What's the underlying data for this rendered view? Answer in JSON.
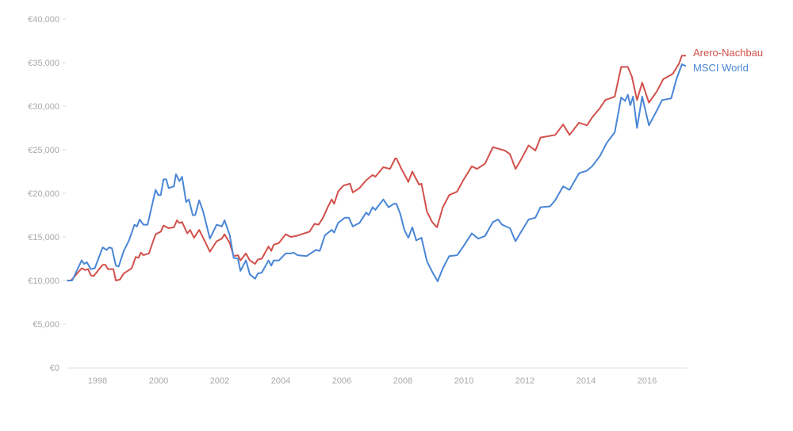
{
  "chart_data": {
    "type": "line",
    "title": "",
    "xlabel": "",
    "ylabel": "",
    "xlim": [
      1997,
      2017.3
    ],
    "ylim": [
      0,
      40000
    ],
    "grid": false,
    "legend_placement": "right-end-of-lines",
    "x_ticks": [
      1998,
      2000,
      2002,
      2004,
      2006,
      2008,
      2010,
      2012,
      2014,
      2016
    ],
    "x_tick_labels": [
      "1998",
      "2000",
      "2002",
      "2004",
      "2006",
      "2008",
      "2010",
      "2012",
      "2014",
      "2016"
    ],
    "y_ticks": [
      0,
      5000,
      10000,
      15000,
      20000,
      25000,
      30000,
      35000,
      40000
    ],
    "y_tick_labels": [
      "€0",
      "€5,000",
      "€10,000",
      "€15,000",
      "€20,000",
      "€25,000",
      "€30,000",
      "€35,000",
      "€40,000"
    ],
    "series": [
      {
        "name": "Arero-Nachbau",
        "color": "#d2504b",
        "x": [
          1997.0,
          1997.13,
          1997.48,
          1997.6,
          1997.69,
          1997.78,
          1997.87,
          1998.17,
          1998.26,
          1998.34,
          1998.52,
          1998.6,
          1998.73,
          1998.86,
          1999.03,
          1999.12,
          1999.25,
          1999.34,
          1999.42,
          1999.5,
          1999.68,
          1999.9,
          2000.07,
          2000.16,
          2000.33,
          2000.5,
          2000.6,
          2000.68,
          2000.77,
          2000.94,
          2001.03,
          2001.16,
          2001.33,
          2001.5,
          2001.68,
          2001.9,
          2002.07,
          2002.16,
          2002.33,
          2002.46,
          2002.6,
          2002.68,
          2002.86,
          2002.99,
          2003.16,
          2003.25,
          2003.38,
          2003.6,
          2003.69,
          2003.77,
          2003.94,
          2004.16,
          2004.33,
          2004.5,
          2004.94,
          2005.11,
          2005.24,
          2005.37,
          2005.54,
          2005.67,
          2005.75,
          2005.88,
          2006.06,
          2006.27,
          2006.36,
          2006.58,
          2006.8,
          2007.01,
          2007.1,
          2007.36,
          2007.58,
          2007.75,
          2007.79,
          2007.97,
          2008.14,
          2008.18,
          2008.31,
          2008.53,
          2008.61,
          2008.79,
          2008.96,
          2009.12,
          2009.31,
          2009.52,
          2009.78,
          2009.96,
          2010.26,
          2010.43,
          2010.69,
          2010.95,
          2011.34,
          2011.51,
          2011.69,
          2011.86,
          2012.12,
          2012.34,
          2012.51,
          2012.99,
          2013.25,
          2013.46,
          2013.77,
          2014.03,
          2014.2,
          2014.46,
          2014.63,
          2014.94,
          2015.15,
          2015.37,
          2015.5,
          2015.67,
          2015.84,
          2016.06,
          2016.32,
          2016.53,
          2016.84,
          2017.05,
          2017.14,
          2017.27
        ],
        "values": [
          10000,
          10000,
          11400,
          11200,
          11300,
          10600,
          10500,
          11800,
          11800,
          11300,
          11300,
          10000,
          10100,
          10800,
          11200,
          11400,
          12700,
          12600,
          13200,
          12900,
          13100,
          15300,
          15600,
          16300,
          16000,
          16100,
          16900,
          16600,
          16700,
          15400,
          15800,
          14900,
          15800,
          14600,
          13300,
          14500,
          14800,
          15300,
          14300,
          12800,
          12900,
          12300,
          13100,
          12300,
          11900,
          12400,
          12500,
          13900,
          13400,
          14100,
          14300,
          15300,
          15000,
          15100,
          15600,
          16500,
          16400,
          17100,
          18400,
          19300,
          18800,
          20200,
          20900,
          21100,
          20100,
          20600,
          21500,
          22100,
          21900,
          23000,
          22800,
          24000,
          24000,
          22700,
          21600,
          21300,
          22500,
          21000,
          21100,
          17900,
          16700,
          16100,
          18400,
          19800,
          20200,
          21400,
          23100,
          22800,
          23400,
          25300,
          24900,
          24500,
          22800,
          23800,
          25500,
          24900,
          26400,
          26700,
          27900,
          26700,
          28100,
          27800,
          28700,
          29800,
          30700,
          31100,
          34500,
          34500,
          33400,
          30700,
          32700,
          30400,
          31700,
          33100,
          33700,
          34900,
          35800,
          35800
        ]
      },
      {
        "name": "MSCI World",
        "color": "#4a86d6",
        "x": [
          1997.0,
          1997.17,
          1997.48,
          1997.56,
          1997.65,
          1997.78,
          1997.91,
          1998.17,
          1998.3,
          1998.38,
          1998.47,
          1998.6,
          1998.69,
          1998.86,
          1999.03,
          1999.21,
          1999.29,
          1999.38,
          1999.5,
          1999.64,
          1999.9,
          1999.99,
          2000.07,
          2000.16,
          2000.25,
          2000.33,
          2000.5,
          2000.57,
          2000.68,
          2000.77,
          2000.9,
          2000.99,
          2001.12,
          2001.2,
          2001.33,
          2001.46,
          2001.68,
          2001.9,
          2002.07,
          2002.16,
          2002.33,
          2002.46,
          2002.6,
          2002.68,
          2002.86,
          2002.99,
          2003.16,
          2003.25,
          2003.38,
          2003.6,
          2003.69,
          2003.77,
          2003.94,
          2004.16,
          2004.33,
          2004.42,
          2004.55,
          2004.85,
          2005.15,
          2005.28,
          2005.45,
          2005.67,
          2005.75,
          2005.88,
          2006.1,
          2006.23,
          2006.36,
          2006.58,
          2006.8,
          2006.88,
          2007.01,
          2007.1,
          2007.36,
          2007.53,
          2007.71,
          2007.79,
          2007.92,
          2008.05,
          2008.18,
          2008.31,
          2008.44,
          2008.61,
          2008.79,
          2008.96,
          2009.14,
          2009.31,
          2009.52,
          2009.78,
          2009.96,
          2010.26,
          2010.47,
          2010.69,
          2010.95,
          2011.12,
          2011.25,
          2011.51,
          2011.69,
          2011.86,
          2012.12,
          2012.34,
          2012.51,
          2012.82,
          2012.99,
          2013.25,
          2013.46,
          2013.77,
          2014.03,
          2014.2,
          2014.46,
          2014.68,
          2014.94,
          2015.15,
          2015.28,
          2015.37,
          2015.45,
          2015.54,
          2015.67,
          2015.84,
          2016.06,
          2016.32,
          2016.49,
          2016.79,
          2016.96,
          2017.14,
          2017.27
        ],
        "values": [
          9970,
          10000,
          12300,
          11900,
          12100,
          11300,
          11400,
          13800,
          13500,
          13800,
          13700,
          11700,
          11600,
          13400,
          14600,
          16400,
          16200,
          17000,
          16400,
          16400,
          20400,
          19800,
          19800,
          21600,
          21600,
          20600,
          20800,
          22200,
          21400,
          21900,
          19000,
          19300,
          17500,
          17500,
          19200,
          17900,
          14800,
          16400,
          16200,
          16900,
          15200,
          12600,
          12500,
          11100,
          12300,
          10700,
          10200,
          10800,
          10900,
          12300,
          11700,
          12300,
          12300,
          13100,
          13100,
          13200,
          12900,
          12800,
          13500,
          13400,
          15200,
          15800,
          15500,
          16600,
          17200,
          17200,
          16200,
          16600,
          17800,
          17500,
          18400,
          18100,
          19300,
          18400,
          18800,
          18800,
          17600,
          15800,
          14900,
          16100,
          14600,
          14900,
          12200,
          11000,
          9900,
          11400,
          12800,
          12900,
          13800,
          15400,
          14800,
          15100,
          16700,
          17000,
          16400,
          16000,
          14500,
          15500,
          17000,
          17200,
          18400,
          18500,
          19200,
          20800,
          20400,
          22300,
          22600,
          23100,
          24300,
          25800,
          27000,
          31000,
          30600,
          31300,
          30100,
          31100,
          27500,
          31100,
          27800,
          29500,
          30700,
          30900,
          33100,
          34800,
          34600
        ]
      }
    ]
  }
}
